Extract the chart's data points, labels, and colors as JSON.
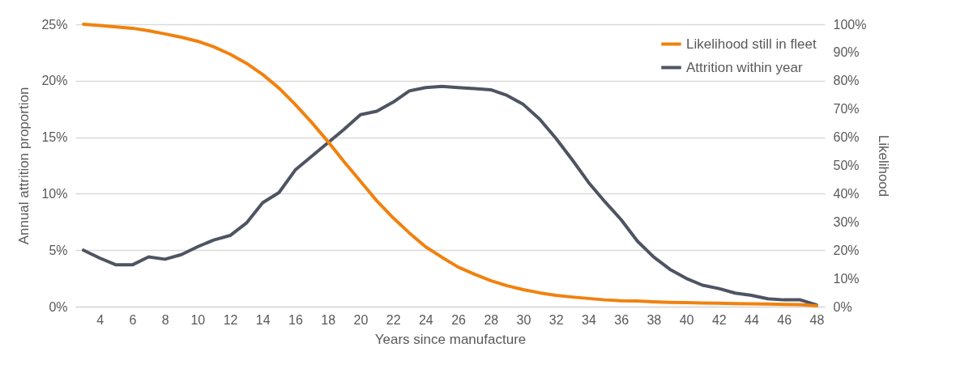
{
  "chart_data": {
    "type": "line",
    "xlabel": "Years since manufacture",
    "ylabel": "Annual attrition proportion",
    "y2label": "Likelihood",
    "x": [
      3,
      4,
      5,
      6,
      7,
      8,
      9,
      10,
      11,
      12,
      13,
      14,
      15,
      16,
      17,
      18,
      19,
      20,
      21,
      22,
      23,
      24,
      25,
      26,
      27,
      28,
      29,
      30,
      31,
      32,
      33,
      34,
      35,
      36,
      37,
      38,
      39,
      40,
      41,
      42,
      43,
      44,
      45,
      46,
      47,
      48
    ],
    "series": [
      {
        "name": "Likelihood still in fleet",
        "color": "#f0820f",
        "axis": "y2",
        "values": [
          100,
          99.6,
          99.1,
          98.6,
          97.7,
          96.6,
          95.4,
          94,
          92,
          89.4,
          86.2,
          82.2,
          77.4,
          71.6,
          65.3,
          58.5,
          51.3,
          44.4,
          37.5,
          31.5,
          26.1,
          21.2,
          17.5,
          14,
          11.5,
          9.2,
          7.4,
          6,
          4.9,
          4,
          3.4,
          2.9,
          2.4,
          2.1,
          2,
          1.7,
          1.5,
          1.4,
          1.3,
          1.2,
          1.1,
          1,
          0.9,
          0.8,
          0.7,
          0.3
        ]
      },
      {
        "name": "Attrition within year",
        "color": "#4f5463",
        "values": [
          5,
          4.3,
          3.7,
          3.7,
          4.4,
          4.2,
          4.6,
          5.3,
          5.9,
          6.3,
          7.4,
          9.2,
          10.1,
          12.1,
          13.3,
          14.5,
          15.7,
          17,
          17.3,
          18.1,
          19.1,
          19.4,
          19.5,
          19.4,
          19.3,
          19.2,
          18.7,
          17.9,
          16.6,
          14.9,
          13,
          11,
          9.3,
          7.7,
          5.8,
          4.4,
          3.3,
          2.5,
          1.9,
          1.6,
          1.2,
          1,
          0.7,
          0.6,
          0.6,
          0.15
        ]
      }
    ],
    "xlim": [
      2.5,
      48.5
    ],
    "xticks": [
      4,
      6,
      8,
      10,
      12,
      14,
      16,
      18,
      20,
      22,
      24,
      26,
      28,
      30,
      32,
      34,
      36,
      38,
      40,
      42,
      44,
      46,
      48
    ],
    "ylim": [
      0,
      25
    ],
    "yticks": [
      {
        "value": 0,
        "label": "0%"
      },
      {
        "value": 5,
        "label": "5%"
      },
      {
        "value": 10,
        "label": "10%"
      },
      {
        "value": 15,
        "label": "15%"
      },
      {
        "value": 20,
        "label": "20%"
      },
      {
        "value": 25,
        "label": "25%"
      }
    ],
    "y2lim": [
      0,
      100
    ],
    "y2ticks": [
      {
        "value": 0,
        "label": "0%"
      },
      {
        "value": 10,
        "label": "10%"
      },
      {
        "value": 20,
        "label": "20%"
      },
      {
        "value": 30,
        "label": "30%"
      },
      {
        "value": 40,
        "label": "40%"
      },
      {
        "value": 50,
        "label": "50%"
      },
      {
        "value": 60,
        "label": "60%"
      },
      {
        "value": 70,
        "label": "70%"
      },
      {
        "value": 80,
        "label": "80%"
      },
      {
        "value": 90,
        "label": "90%"
      },
      {
        "value": 100,
        "label": "100%"
      }
    ],
    "grid": "y",
    "legend": "top right",
    "marker": "none",
    "line_style": "solid"
  }
}
